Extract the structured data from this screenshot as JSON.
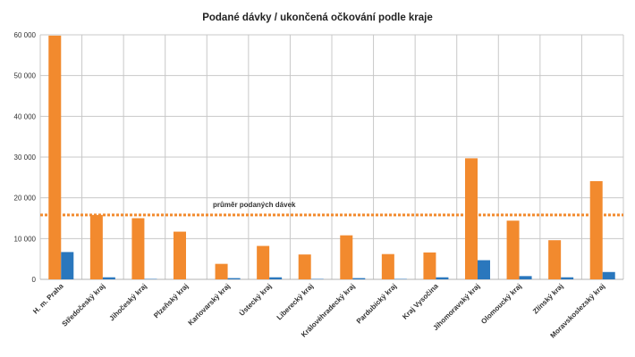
{
  "chart_data": {
    "type": "bar",
    "title": "Podané dávky / ukončená očkování podle kraje",
    "xlabel": "",
    "ylabel": "",
    "ylim": [
      0,
      60000
    ],
    "yticks": [
      0,
      10000,
      20000,
      30000,
      40000,
      50000,
      60000
    ],
    "ytick_labels": [
      "0",
      "10 000",
      "20 000",
      "30 000",
      "40 000",
      "50 000",
      "60 000"
    ],
    "grid": true,
    "legend": "none",
    "categories": [
      "H. m. Praha",
      "Středočeský kraj",
      "Jihočeský kraj",
      "Plzeňský kraj",
      "Karlovarský kraj",
      "Ústecký kraj",
      "Liberecký kraj",
      "Královéhradecký kraj",
      "Pardubický kraj",
      "Kraj Vysočina",
      "Jihomoravský kraj",
      "Olomoucký kraj",
      "Zlínský kraj",
      "Moravskoslezský kraj"
    ],
    "series": [
      {
        "color": "#f28a2e",
        "values": [
          59800,
          15800,
          15000,
          11700,
          3800,
          8200,
          6100,
          10800,
          6200,
          6600,
          29700,
          14400,
          9600,
          24100
        ]
      },
      {
        "color": "#2a77bd",
        "values": [
          6700,
          500,
          100,
          0,
          300,
          500,
          100,
          300,
          100,
          500,
          4700,
          800,
          500,
          1800
        ]
      }
    ],
    "reference_line": {
      "label": "průměr podaných dávek",
      "value": 15800,
      "color": "#f28a2e"
    }
  }
}
